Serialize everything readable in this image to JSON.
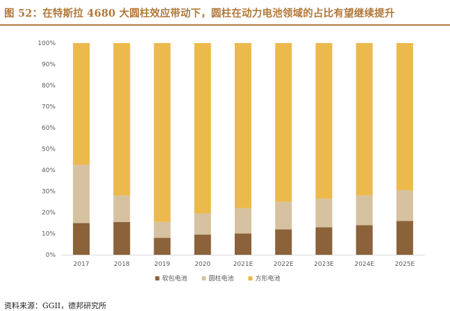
{
  "title": "图 52：在特斯拉 4680 大圆柱效应带动下，圆柱在动力电池领域的占比有望继续提升",
  "source": "资料来源：GGII，德邦研究所",
  "colors": {
    "soft_pack": "#8b6239",
    "cylindrical": "#d6c2a0",
    "prismatic": "#ecb94d",
    "title": "#b0783a"
  },
  "chart_data": {
    "type": "bar",
    "stacked": true,
    "categories": [
      "2017",
      "2018",
      "2019",
      "2020",
      "2021E",
      "2022E",
      "2023E",
      "2024E",
      "2025E"
    ],
    "series": [
      {
        "name": "软包电池",
        "values": [
          15,
          15.5,
          8,
          9.5,
          10,
          12,
          13,
          14,
          16
        ]
      },
      {
        "name": "圆柱电池",
        "values": [
          27.5,
          12.5,
          7.5,
          10,
          12,
          13,
          13.5,
          14,
          14.5
        ]
      },
      {
        "name": "方形电池",
        "values": [
          57.5,
          72,
          84.5,
          80.5,
          78,
          75,
          73.5,
          72,
          69.5
        ]
      }
    ],
    "ylim": [
      0,
      100
    ],
    "yticks": [
      "0%",
      "10%",
      "20%",
      "30%",
      "40%",
      "50%",
      "60%",
      "70%",
      "80%",
      "90%",
      "100%"
    ],
    "legend_position": "bottom"
  }
}
